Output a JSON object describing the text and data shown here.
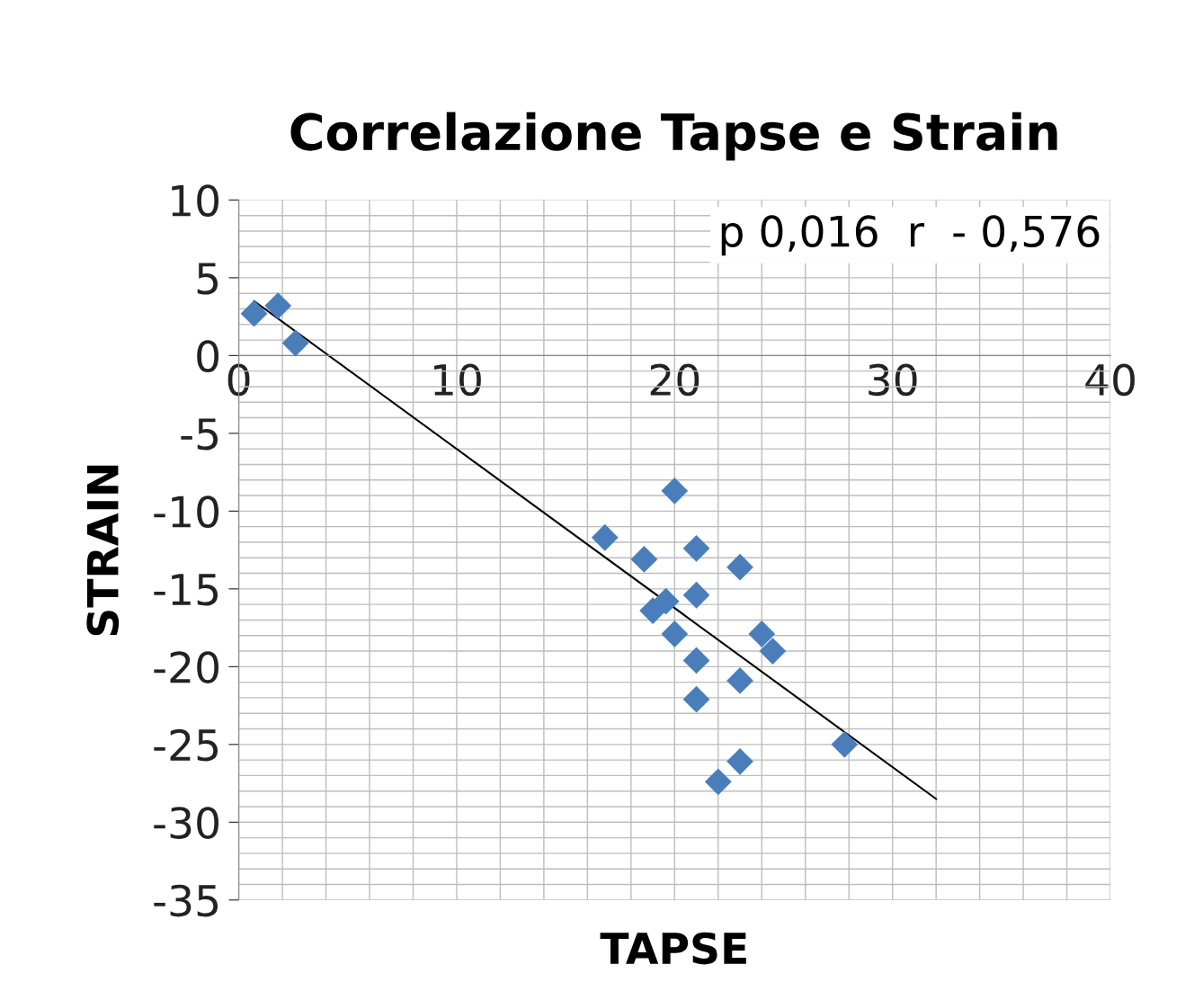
{
  "chart_data": {
    "type": "scatter",
    "title": "Correlazione Tapse e Strain",
    "xlabel": "TAPSE",
    "ylabel": "STRAIN",
    "annotations": [
      "p 0,016  r  - 0,576"
    ],
    "xlim": [
      0,
      40
    ],
    "xticks": [
      0,
      10,
      20,
      30,
      40
    ],
    "ylim": [
      -35,
      10
    ],
    "yticks": [
      -35,
      -30,
      -25,
      -20,
      -15,
      -10,
      -5,
      0,
      5,
      10
    ],
    "grid": true,
    "legend": false,
    "marker": "diamond",
    "series": [
      {
        "color": "#4a7ebb",
        "x": [
          0.7,
          1.8,
          2.6,
          20.0,
          16.8,
          18.6,
          21.0,
          23.0,
          19.6,
          19.0,
          21.0,
          20.0,
          24.0,
          24.5,
          21.0,
          23.0,
          21.0,
          23.0,
          22.0,
          27.8
        ],
        "values": [
          2.7,
          3.2,
          0.8,
          -8.7,
          -11.7,
          -13.1,
          -12.4,
          -13.6,
          -15.8,
          -16.4,
          -15.4,
          -17.9,
          -17.9,
          -19.0,
          -19.6,
          -20.9,
          -22.1,
          -26.1,
          -27.4,
          -25.0
        ]
      },
      {
        "type": "line",
        "color": "#000000",
        "marker": "none",
        "x": [
          0.7,
          32.0
        ],
        "values": [
          3.5,
          -28.5
        ]
      }
    ]
  }
}
